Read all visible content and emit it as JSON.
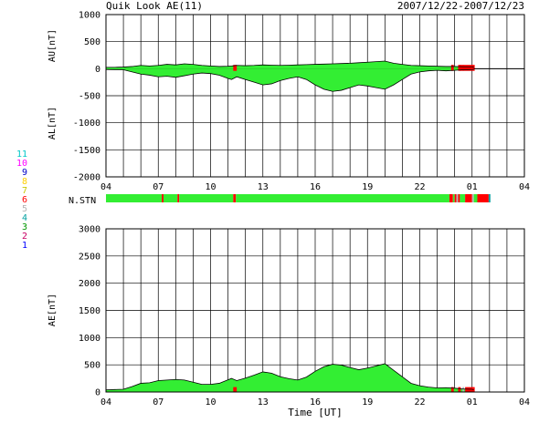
{
  "header": {
    "title": "Quik Look AE(11)",
    "date_range": "2007/12/22-2007/12/23"
  },
  "station_legend": [
    {
      "label": "11",
      "color": "#00c8c8"
    },
    {
      "label": "10",
      "color": "#ff00ff"
    },
    {
      "label": "9",
      "color": "#0000c8"
    },
    {
      "label": "8",
      "color": "#ffd000"
    },
    {
      "label": "7",
      "color": "#c8c800"
    },
    {
      "label": "6",
      "color": "#ff0000"
    },
    {
      "label": "5",
      "color": "#b4b4b4"
    },
    {
      "label": "4",
      "color": "#00a0a0"
    },
    {
      "label": "3",
      "color": "#009600"
    },
    {
      "label": "2",
      "color": "#c80064"
    },
    {
      "label": "1",
      "color": "#0000ff"
    }
  ],
  "nstn_label": "N.STN",
  "xlabel": "Time [UT]",
  "chart_data": [
    {
      "type": "area",
      "name": "AU/AL",
      "ylabel_upper": "AU[nT]",
      "ylabel_lower": "AL[nT]",
      "ylim": [
        -2000,
        1000
      ],
      "yticks": [
        "1000",
        "500",
        "0",
        "-500",
        "-1000",
        "-1500",
        "-2000"
      ],
      "xlim": [
        4,
        28
      ],
      "xticks": [
        "04",
        "07",
        "10",
        "13",
        "16",
        "19",
        "22",
        "01",
        "04"
      ],
      "grid": true,
      "data_end_hour": 25.1,
      "x_hours": [
        4,
        4.5,
        5,
        5.5,
        6,
        6.5,
        7,
        7.5,
        8,
        8.5,
        9,
        9.5,
        10,
        10.5,
        11,
        11.2,
        11.5,
        12,
        12.5,
        13,
        13.5,
        14,
        14.5,
        15,
        15.5,
        16,
        16.5,
        17,
        17.5,
        18,
        18.5,
        19,
        19.5,
        20,
        20.5,
        21,
        21.5,
        22,
        22.5,
        23,
        23.5,
        24,
        24.5,
        25,
        25.1
      ],
      "au": [
        25,
        25,
        30,
        40,
        60,
        50,
        60,
        80,
        70,
        90,
        80,
        60,
        50,
        40,
        45,
        50,
        60,
        55,
        60,
        70,
        65,
        60,
        65,
        70,
        75,
        80,
        85,
        90,
        95,
        100,
        110,
        120,
        130,
        140,
        100,
        80,
        60,
        55,
        50,
        45,
        40,
        40,
        35,
        35,
        30
      ],
      "al": [
        -15,
        -20,
        -20,
        -60,
        -100,
        -120,
        -150,
        -140,
        -160,
        -130,
        -100,
        -80,
        -90,
        -120,
        -180,
        -200,
        -150,
        -200,
        -250,
        -300,
        -280,
        -220,
        -180,
        -150,
        -200,
        -300,
        -380,
        -420,
        -400,
        -350,
        -300,
        -320,
        -350,
        -380,
        -300,
        -200,
        -100,
        -60,
        -40,
        -30,
        -40,
        -30,
        -20,
        -15,
        -10
      ],
      "colored_segments": [
        {
          "from": 11.3,
          "to": 11.5,
          "color": "#ff0000"
        },
        {
          "from": 23.8,
          "to": 23.95,
          "color": "#ff0000"
        },
        {
          "from": 24.2,
          "to": 24.35,
          "color": "#ff0000"
        },
        {
          "from": 24.45,
          "to": 24.55,
          "color": "#b4b4b4"
        },
        {
          "from": 24.3,
          "to": 25.15,
          "color": "#ff0000"
        }
      ]
    },
    {
      "type": "bar",
      "name": "N.STN",
      "xlim": [
        4,
        28
      ],
      "segments": [
        {
          "from": 4,
          "to": 7.2,
          "color": "#33ee33"
        },
        {
          "from": 7.2,
          "to": 7.3,
          "color": "#ff0000"
        },
        {
          "from": 7.3,
          "to": 8.1,
          "color": "#33ee33"
        },
        {
          "from": 8.1,
          "to": 8.2,
          "color": "#ff0000"
        },
        {
          "from": 8.2,
          "to": 11.3,
          "color": "#33ee33"
        },
        {
          "from": 11.3,
          "to": 11.45,
          "color": "#ff0000"
        },
        {
          "from": 11.45,
          "to": 23.7,
          "color": "#33ee33"
        },
        {
          "from": 23.7,
          "to": 23.9,
          "color": "#ff0000"
        },
        {
          "from": 23.9,
          "to": 24.0,
          "color": "#33ee33"
        },
        {
          "from": 24.0,
          "to": 24.1,
          "color": "#ff0000"
        },
        {
          "from": 24.1,
          "to": 24.2,
          "color": "#b4b4b4"
        },
        {
          "from": 24.2,
          "to": 24.3,
          "color": "#ff0000"
        },
        {
          "from": 24.3,
          "to": 24.6,
          "color": "#33ee33"
        },
        {
          "from": 24.6,
          "to": 25.0,
          "color": "#ff0000"
        },
        {
          "from": 25.0,
          "to": 25.1,
          "color": "#b4b4b4"
        },
        {
          "from": 25.1,
          "to": 25.3,
          "color": "#33ee33"
        },
        {
          "from": 25.3,
          "to": 25.95,
          "color": "#ff0000"
        },
        {
          "from": 25.95,
          "to": 26.05,
          "color": "#00a0a0"
        }
      ]
    },
    {
      "type": "area",
      "name": "AE",
      "ylabel": "AE[nT]",
      "ylim": [
        0,
        3000
      ],
      "yticks": [
        "3000",
        "2500",
        "2000",
        "1500",
        "1000",
        "500",
        "0"
      ],
      "xlim": [
        4,
        28
      ],
      "xticks": [
        "04",
        "07",
        "10",
        "13",
        "16",
        "19",
        "22",
        "01",
        "04"
      ],
      "grid": true,
      "x_hours": [
        4,
        4.5,
        5,
        5.5,
        6,
        6.5,
        7,
        7.5,
        8,
        8.5,
        9,
        9.5,
        10,
        10.5,
        11,
        11.2,
        11.5,
        12,
        12.5,
        13,
        13.5,
        14,
        14.5,
        15,
        15.5,
        16,
        16.5,
        17,
        17.5,
        18,
        18.5,
        19,
        19.5,
        20,
        20.5,
        21,
        21.5,
        22,
        22.5,
        23,
        23.5,
        24,
        24.5,
        25,
        25.1
      ],
      "ae": [
        40,
        45,
        50,
        100,
        160,
        170,
        210,
        220,
        230,
        220,
        180,
        140,
        140,
        160,
        225,
        250,
        210,
        255,
        310,
        370,
        345,
        280,
        245,
        220,
        275,
        380,
        465,
        510,
        495,
        450,
        410,
        440,
        480,
        520,
        400,
        280,
        160,
        115,
        90,
        75,
        80,
        70,
        55,
        50,
        40
      ],
      "colored_segments": [
        {
          "from": 11.3,
          "to": 11.5,
          "color": "#ff0000"
        },
        {
          "from": 23.8,
          "to": 23.95,
          "color": "#ff0000"
        },
        {
          "from": 24.2,
          "to": 24.35,
          "color": "#ff0000"
        },
        {
          "from": 24.45,
          "to": 24.55,
          "color": "#b4b4b4"
        },
        {
          "from": 24.6,
          "to": 25.15,
          "color": "#ff0000"
        }
      ]
    }
  ]
}
